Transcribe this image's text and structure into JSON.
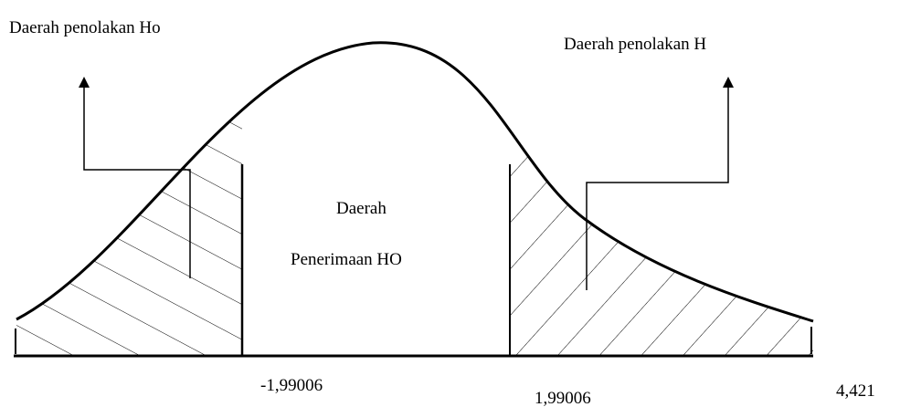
{
  "left_region": {
    "label": "Daerah penolakan Ho"
  },
  "right_region": {
    "label": "Daerah penolakan H"
  },
  "acceptance_region": {
    "line1": "Daerah",
    "line2": "Penerimaan HO"
  },
  "critical_values": {
    "lower": "-1,99006",
    "upper": "1,99006",
    "statistic": "4,421"
  }
}
